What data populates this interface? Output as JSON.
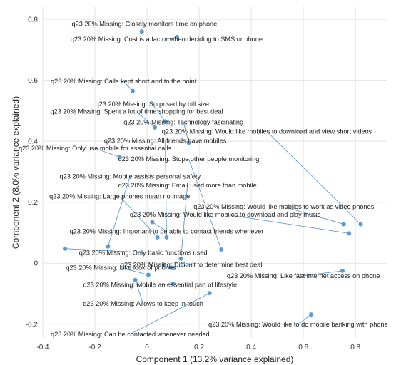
{
  "chart_data": {
    "type": "scatter",
    "title": "",
    "xlabel": "Component 1 (13.2% variance explained)",
    "ylabel": "Component 2 (8.0% variance explained)",
    "xlim": [
      -0.4,
      0.92
    ],
    "ylim": [
      -0.245,
      0.84
    ],
    "xticks": [
      -0.4,
      -0.2,
      0,
      0.2,
      0.4,
      0.6,
      0.8
    ],
    "yticks": [
      -0.2,
      0,
      0.2,
      0.4,
      0.6,
      0.8
    ],
    "xtick_labels": [
      "-0.4",
      "-0.2",
      "0",
      "0.2",
      "0.4",
      "0.6",
      "0.8"
    ],
    "ytick_labels": [
      "-0.2",
      "0",
      "0.2",
      "0.4",
      "0.6",
      "0.8"
    ],
    "grid": true,
    "point_color": "#5b9bd5",
    "points": [
      {
        "label": "q23 20% Missing: Closely monitors time on phone",
        "x": -0.02,
        "y": 0.76,
        "lx": -0.01,
        "ly": 0.778
      },
      {
        "label": "q23 20% Missing: Cost is a factor when deciding to SMS or phone",
        "x": 0.115,
        "y": 0.742,
        "lx": 0.075,
        "ly": 0.728
      },
      {
        "label": "q23 20% Missing: Calls kept short and to the point",
        "x": -0.055,
        "y": 0.565,
        "lx": -0.09,
        "ly": 0.59
      },
      {
        "label": "q23 20% Missing: Surprised by bill size",
        "x": 0.07,
        "y": 0.465,
        "lx": 0.02,
        "ly": 0.515
      },
      {
        "label": "q23 20% Missing: Spent a lot of time shopping for best deal",
        "x": 0.03,
        "y": 0.445,
        "lx": -0.04,
        "ly": 0.49
      },
      {
        "label": "q23 20% Missing: Technology fascinating",
        "x": 0.16,
        "y": 0.395,
        "lx": 0.14,
        "ly": 0.455
      },
      {
        "label": "q23 20% Missing: Would like mobiles to download and view short videos",
        "x": 0.82,
        "y": 0.128,
        "lx": 0.46,
        "ly": 0.425
      },
      {
        "label": "q23 20% Missing: All friends have mobiles",
        "x": 0.075,
        "y": 0.085,
        "lx": 0.07,
        "ly": 0.395
      },
      {
        "label": "q23 20% Missing: Only use mobile for essential calls",
        "x": -0.105,
        "y": 0.348,
        "lx": -0.2,
        "ly": 0.37
      },
      {
        "label": "q23 20% Missing: Stops other people monitoring",
        "x": 0.285,
        "y": 0.045,
        "lx": 0.16,
        "ly": 0.335
      },
      {
        "label": "q23 20% Missing: Mobile assists personal safety",
        "x": -0.15,
        "y": 0.055,
        "lx": -0.065,
        "ly": 0.278
      },
      {
        "label": "q23 20% Missing: Email used more than mobile",
        "x": 0.13,
        "y": 0.015,
        "lx": 0.155,
        "ly": 0.248
      },
      {
        "label": "q23 20% Missing: Large phones mean no image",
        "x": 0.04,
        "y": 0.085,
        "lx": -0.105,
        "ly": 0.212
      },
      {
        "label": "q23 20% Missing: Would like mobiles to work as video phones",
        "x": 0.755,
        "y": 0.128,
        "lx": 0.525,
        "ly": 0.178
      },
      {
        "label": "q23 20% Missing: Would like mobiles to download and play music",
        "x": 0.775,
        "y": 0.098,
        "lx": 0.3,
        "ly": 0.153
      },
      {
        "label": "q23 20% Missing: Important to be able to contact friends whenever",
        "x": 0.02,
        "y": 0.135,
        "lx": 0.075,
        "ly": 0.098
      },
      {
        "label": "q23 20% Missing: Only basic functions used",
        "x": -0.315,
        "y": 0.048,
        "lx": -0.015,
        "ly": 0.028
      },
      {
        "label": "q23 20% Missing: Difficult to determine best deal",
        "x": 0.095,
        "y": -0.015,
        "lx": 0.17,
        "ly": -0.012
      },
      {
        "label": "q23 20% Missing: Like fast internet access on phone",
        "x": 0.75,
        "y": -0.025,
        "lx": 0.6,
        "ly": -0.048
      },
      {
        "label": "q23 20% Missing: Like look of phones",
        "x": 0.005,
        "y": -0.038,
        "lx": -0.1,
        "ly": -0.022
      },
      {
        "label": "q23 20% Missing: Mobile an essential part of lifestyle",
        "x": 0.1,
        "y": -0.068,
        "lx": 0.05,
        "ly": -0.078
      },
      {
        "label": "q23 20% Missing: Allows to keep in touch",
        "x": -0.045,
        "y": -0.055,
        "lx": -0.015,
        "ly": -0.14
      },
      {
        "label": "q23 20% Missing: Would like to do mobile banking with phone",
        "x": 0.63,
        "y": -0.168,
        "lx": 0.58,
        "ly": -0.208
      },
      {
        "label": "q23 20% Missing: Can be contacted whenever needed",
        "x": 0.24,
        "y": -0.098,
        "lx": -0.065,
        "ly": -0.24
      },
      {
        "label": "",
        "x": 0.065,
        "y": -0.005
      },
      {
        "label": "",
        "x": 0.13,
        "y": 0.015
      }
    ]
  }
}
